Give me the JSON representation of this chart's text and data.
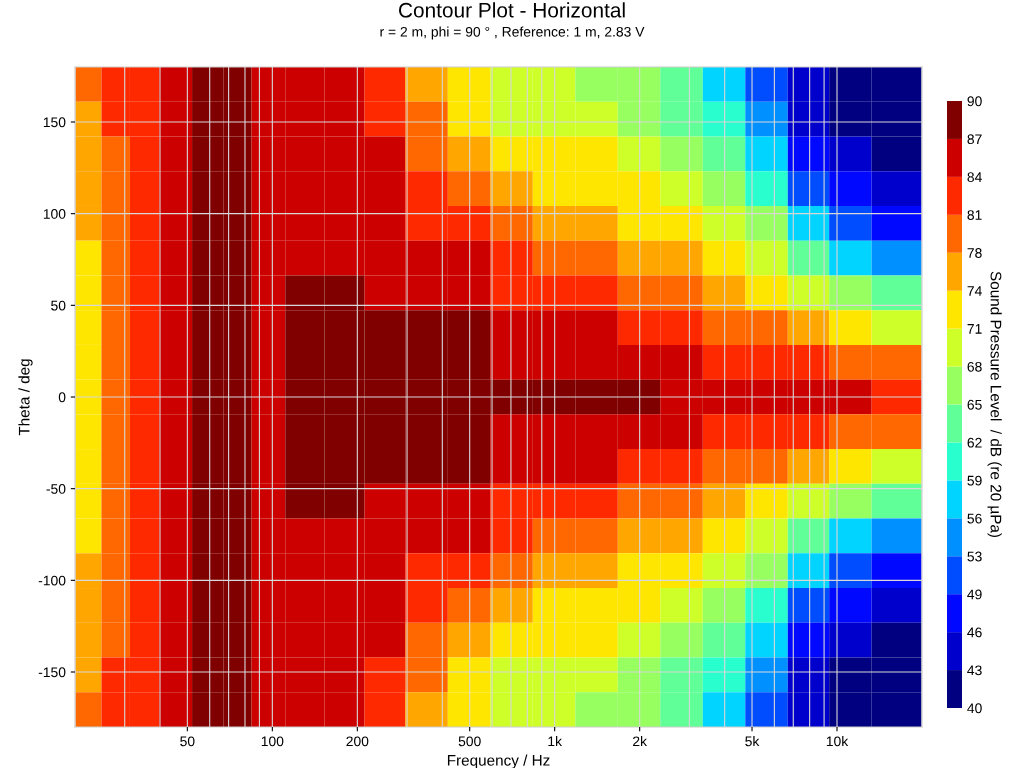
{
  "chart_data": {
    "type": "heatmap",
    "title": "Contour Plot - Horizontal",
    "subtitle": "r = 2 m, phi = 90 ° , Reference: 1 m, 2.83 V",
    "xlabel": "Frequency / Hz",
    "ylabel": "Theta / deg",
    "clabel": "Sound Pressure Level  / dB (re 20 µPa)",
    "x": [
      22,
      28,
      35,
      45,
      60,
      75,
      95,
      130,
      180,
      250,
      350,
      500,
      700,
      1000,
      1400,
      2000,
      2800,
      4000,
      5600,
      8000,
      11000,
      16000
    ],
    "cells": [
      [
        79,
        82,
        82,
        85,
        88,
        88,
        85,
        85,
        85,
        82,
        76,
        72,
        69,
        69,
        66,
        66,
        63,
        57,
        51,
        44,
        41,
        41
      ],
      [
        76,
        82,
        82,
        85,
        88,
        88,
        85,
        85,
        85,
        82,
        79,
        72,
        69,
        69,
        69,
        66,
        63,
        60,
        54,
        44,
        41,
        41
      ],
      [
        76,
        79,
        82,
        85,
        88,
        88,
        85,
        85,
        85,
        85,
        79,
        76,
        72,
        72,
        72,
        69,
        66,
        63,
        57,
        47,
        44,
        41
      ],
      [
        76,
        79,
        82,
        85,
        88,
        88,
        85,
        85,
        85,
        85,
        82,
        79,
        76,
        72,
        72,
        72,
        69,
        66,
        60,
        51,
        47,
        44
      ],
      [
        76,
        79,
        82,
        85,
        88,
        88,
        85,
        85,
        85,
        85,
        82,
        82,
        79,
        76,
        76,
        72,
        72,
        69,
        66,
        57,
        51,
        47
      ],
      [
        72,
        79,
        82,
        85,
        88,
        88,
        85,
        85,
        85,
        85,
        85,
        85,
        82,
        79,
        79,
        76,
        76,
        72,
        69,
        63,
        57,
        54
      ],
      [
        72,
        79,
        82,
        85,
        88,
        88,
        85,
        88,
        88,
        85,
        85,
        85,
        82,
        82,
        82,
        79,
        79,
        76,
        72,
        69,
        66,
        63
      ],
      [
        72,
        79,
        82,
        85,
        88,
        88,
        85,
        88,
        88,
        88,
        88,
        88,
        85,
        85,
        85,
        82,
        82,
        79,
        79,
        76,
        72,
        69
      ],
      [
        72,
        79,
        82,
        85,
        88,
        88,
        85,
        88,
        88,
        88,
        88,
        88,
        85,
        85,
        85,
        85,
        85,
        82,
        82,
        82,
        79,
        79
      ],
      [
        72,
        79,
        82,
        85,
        88,
        88,
        85,
        88,
        88,
        88,
        88,
        88,
        88,
        88,
        88,
        88,
        85,
        85,
        85,
        85,
        85,
        82
      ],
      [
        72,
        79,
        82,
        85,
        88,
        88,
        85,
        88,
        88,
        88,
        88,
        88,
        85,
        85,
        85,
        85,
        85,
        82,
        82,
        82,
        79,
        79
      ],
      [
        72,
        79,
        82,
        85,
        88,
        88,
        85,
        88,
        88,
        88,
        88,
        88,
        85,
        85,
        85,
        82,
        82,
        79,
        79,
        76,
        72,
        69
      ],
      [
        72,
        79,
        82,
        85,
        88,
        88,
        85,
        88,
        88,
        85,
        85,
        85,
        82,
        82,
        82,
        79,
        79,
        76,
        72,
        69,
        66,
        63
      ],
      [
        72,
        79,
        82,
        85,
        88,
        88,
        85,
        85,
        85,
        85,
        85,
        85,
        82,
        79,
        79,
        76,
        76,
        72,
        69,
        63,
        57,
        54
      ],
      [
        76,
        79,
        82,
        85,
        88,
        88,
        85,
        85,
        85,
        85,
        82,
        82,
        79,
        76,
        76,
        72,
        72,
        69,
        66,
        57,
        51,
        47
      ],
      [
        76,
        79,
        82,
        85,
        88,
        88,
        85,
        85,
        85,
        85,
        82,
        79,
        76,
        72,
        72,
        72,
        69,
        66,
        60,
        51,
        47,
        44
      ],
      [
        76,
        79,
        82,
        85,
        88,
        88,
        85,
        85,
        85,
        85,
        79,
        76,
        72,
        72,
        72,
        69,
        66,
        63,
        57,
        47,
        44,
        41
      ],
      [
        76,
        82,
        82,
        85,
        88,
        88,
        85,
        85,
        85,
        82,
        79,
        72,
        69,
        69,
        69,
        66,
        63,
        60,
        54,
        44,
        41,
        41
      ],
      [
        79,
        82,
        82,
        85,
        88,
        88,
        85,
        85,
        85,
        82,
        76,
        72,
        69,
        69,
        66,
        66,
        63,
        57,
        51,
        44,
        41,
        41
      ]
    ],
    "xlim": [
      20,
      20000
    ],
    "ylim": [
      -180,
      180
    ],
    "log": "x",
    "xticks": [
      50,
      100,
      200,
      500,
      {
        "value": 1000,
        "label": "1k"
      },
      {
        "value": 2000,
        "label": "2k"
      },
      {
        "value": 5000,
        "label": "5k"
      },
      {
        "value": 10000,
        "label": "10k"
      }
    ],
    "yticks": [
      -150,
      -100,
      -50,
      0,
      50,
      100,
      150
    ],
    "clim": [
      40,
      90
    ],
    "cticks": [
      40,
      43,
      46,
      49,
      53,
      56,
      59,
      62,
      65,
      68,
      71,
      74,
      78,
      81,
      84,
      87,
      90
    ],
    "grid": true
  }
}
